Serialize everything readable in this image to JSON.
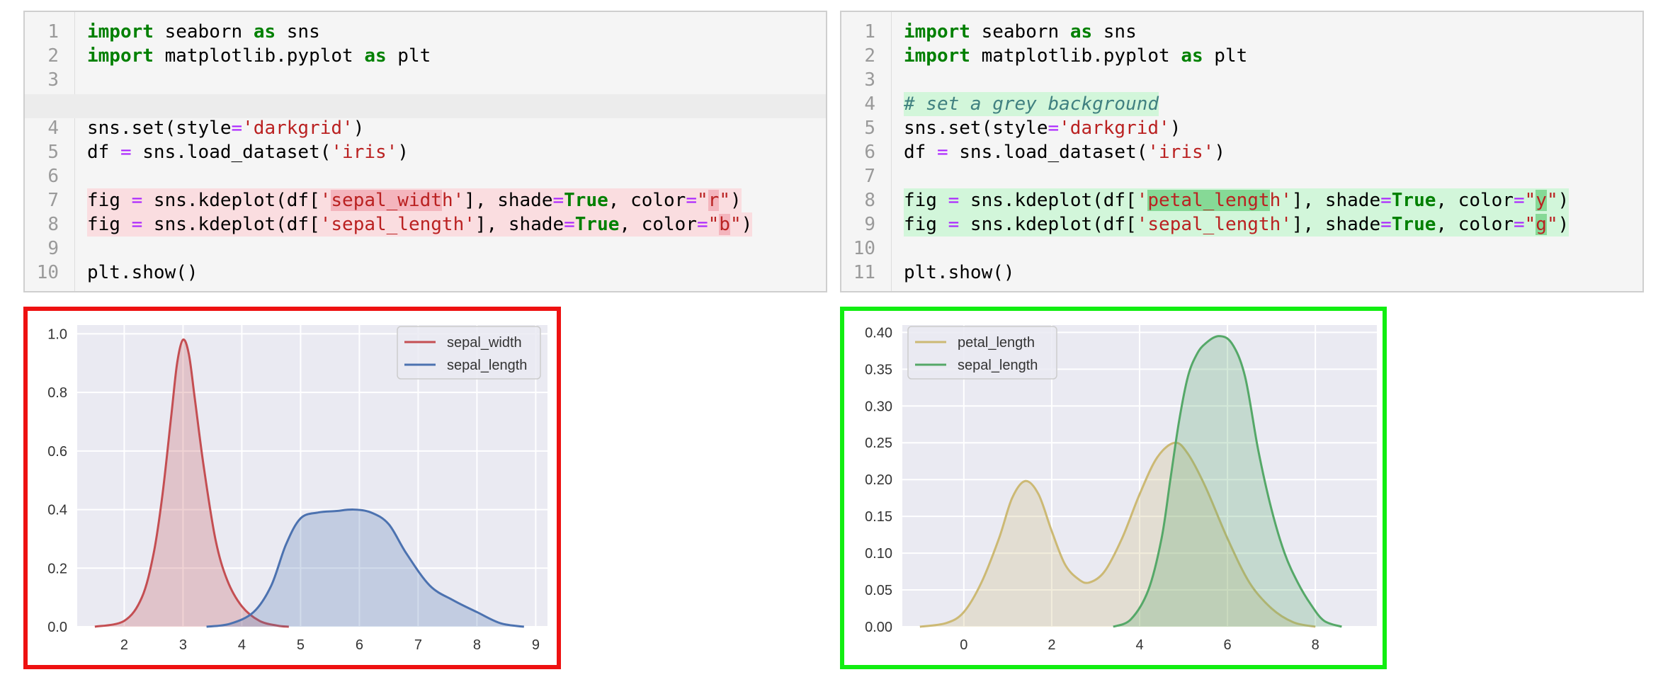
{
  "left_cell": {
    "lines": [
      {
        "num": "1",
        "tokens": [
          {
            "t": "import",
            "c": "kw"
          },
          {
            "t": " seaborn "
          },
          {
            "t": "as",
            "c": "kw"
          },
          {
            "t": " sns"
          }
        ]
      },
      {
        "num": "2",
        "tokens": [
          {
            "t": "import",
            "c": "kw"
          },
          {
            "t": " matplotlib.pyplot "
          },
          {
            "t": "as",
            "c": "kw"
          },
          {
            "t": " plt"
          }
        ]
      },
      {
        "num": "3",
        "tokens": []
      },
      {
        "num": "",
        "tokens": []
      },
      {
        "num": "4",
        "tokens": [
          {
            "t": "sns.set(style"
          },
          {
            "t": "=",
            "c": "op"
          },
          {
            "t": "'darkgrid'",
            "c": "str"
          },
          {
            "t": ")"
          }
        ]
      },
      {
        "num": "5",
        "tokens": [
          {
            "t": "df "
          },
          {
            "t": "=",
            "c": "op"
          },
          {
            "t": " sns.load_dataset("
          },
          {
            "t": "'iris'",
            "c": "str"
          },
          {
            "t": ")"
          }
        ]
      },
      {
        "num": "6",
        "tokens": []
      },
      {
        "num": "7",
        "diff": "dl",
        "tokens": [
          {
            "t": "fig "
          },
          {
            "t": "=",
            "c": "op"
          },
          {
            "t": " sns.kdeplot(df["
          },
          {
            "t": "'",
            "c": "str"
          },
          {
            "t": "sepal_widt",
            "c": "str dh"
          },
          {
            "t": "h'",
            "c": "str"
          },
          {
            "t": "], shade"
          },
          {
            "t": "=",
            "c": "op"
          },
          {
            "t": "True",
            "c": "kw"
          },
          {
            "t": ", color"
          },
          {
            "t": "=",
            "c": "op"
          },
          {
            "t": "\"",
            "c": "str"
          },
          {
            "t": "r",
            "c": "str dh"
          },
          {
            "t": "\"",
            "c": "str"
          },
          {
            "t": ")"
          }
        ]
      },
      {
        "num": "8",
        "diff": "dl",
        "tokens": [
          {
            "t": "fig "
          },
          {
            "t": "=",
            "c": "op"
          },
          {
            "t": " sns.kdeplot(df["
          },
          {
            "t": "'sepal_length'",
            "c": "str"
          },
          {
            "t": "], shade"
          },
          {
            "t": "=",
            "c": "op"
          },
          {
            "t": "True",
            "c": "kw"
          },
          {
            "t": ", color"
          },
          {
            "t": "=",
            "c": "op"
          },
          {
            "t": "\"",
            "c": "str"
          },
          {
            "t": "b",
            "c": "str dh"
          },
          {
            "t": "\"",
            "c": "str"
          },
          {
            "t": ")"
          }
        ]
      },
      {
        "num": "9",
        "tokens": []
      },
      {
        "num": "10",
        "tokens": [
          {
            "t": "plt.show()"
          }
        ]
      }
    ]
  },
  "right_cell": {
    "lines": [
      {
        "num": "1",
        "tokens": [
          {
            "t": "import",
            "c": "kw"
          },
          {
            "t": " seaborn "
          },
          {
            "t": "as",
            "c": "kw"
          },
          {
            "t": " sns"
          }
        ]
      },
      {
        "num": "2",
        "tokens": [
          {
            "t": "import",
            "c": "kw"
          },
          {
            "t": " matplotlib.pyplot "
          },
          {
            "t": "as",
            "c": "kw"
          },
          {
            "t": " plt"
          }
        ]
      },
      {
        "num": "3",
        "tokens": []
      },
      {
        "num": "4",
        "diff": "al",
        "tokens": [
          {
            "t": "# set a grey background",
            "c": "cm"
          }
        ]
      },
      {
        "num": "5",
        "tokens": [
          {
            "t": "sns.set(style"
          },
          {
            "t": "=",
            "c": "op"
          },
          {
            "t": "'darkgrid'",
            "c": "str"
          },
          {
            "t": ")"
          }
        ]
      },
      {
        "num": "6",
        "tokens": [
          {
            "t": "df "
          },
          {
            "t": "=",
            "c": "op"
          },
          {
            "t": " sns.load_dataset("
          },
          {
            "t": "'iris'",
            "c": "str"
          },
          {
            "t": ")"
          }
        ]
      },
      {
        "num": "7",
        "tokens": []
      },
      {
        "num": "8",
        "diff": "al",
        "tokens": [
          {
            "t": "fig "
          },
          {
            "t": "=",
            "c": "op"
          },
          {
            "t": " sns.kdeplot(df["
          },
          {
            "t": "'",
            "c": "str"
          },
          {
            "t": "petal_lengt",
            "c": "str ah"
          },
          {
            "t": "h'",
            "c": "str"
          },
          {
            "t": "], shade"
          },
          {
            "t": "=",
            "c": "op"
          },
          {
            "t": "True",
            "c": "kw"
          },
          {
            "t": ", color"
          },
          {
            "t": "=",
            "c": "op"
          },
          {
            "t": "\"",
            "c": "str"
          },
          {
            "t": "y",
            "c": "str ah"
          },
          {
            "t": "\"",
            "c": "str"
          },
          {
            "t": ")"
          }
        ]
      },
      {
        "num": "9",
        "diff": "al",
        "tokens": [
          {
            "t": "fig "
          },
          {
            "t": "=",
            "c": "op"
          },
          {
            "t": " sns.kdeplot(df["
          },
          {
            "t": "'sepal_length'",
            "c": "str"
          },
          {
            "t": "], shade"
          },
          {
            "t": "=",
            "c": "op"
          },
          {
            "t": "True",
            "c": "kw"
          },
          {
            "t": ", color"
          },
          {
            "t": "=",
            "c": "op"
          },
          {
            "t": "\"",
            "c": "str"
          },
          {
            "t": "g",
            "c": "str ah"
          },
          {
            "t": "\"",
            "c": "str"
          },
          {
            "t": ")"
          }
        ]
      },
      {
        "num": "10",
        "tokens": []
      },
      {
        "num": "11",
        "tokens": [
          {
            "t": "plt.show()"
          }
        ]
      }
    ]
  },
  "chart_data": [
    {
      "type": "area",
      "xlim": [
        1.2,
        9.2
      ],
      "ylim": [
        0,
        1.03
      ],
      "xticks": [
        "2",
        "3",
        "4",
        "5",
        "6",
        "7",
        "8",
        "9"
      ],
      "yticks": [
        "0.0",
        "0.2",
        "0.4",
        "0.6",
        "0.8",
        "1.0"
      ],
      "grid": true,
      "legend_position": "top-right",
      "series": [
        {
          "name": "sepal_width",
          "color": "#c44e52",
          "points": [
            [
              1.5,
              0
            ],
            [
              2.0,
              0.02
            ],
            [
              2.3,
              0.1
            ],
            [
              2.5,
              0.25
            ],
            [
              2.65,
              0.45
            ],
            [
              2.8,
              0.72
            ],
            [
              2.9,
              0.9
            ],
            [
              3.0,
              0.98
            ],
            [
              3.1,
              0.93
            ],
            [
              3.2,
              0.78
            ],
            [
              3.35,
              0.55
            ],
            [
              3.55,
              0.3
            ],
            [
              3.75,
              0.16
            ],
            [
              4.0,
              0.07
            ],
            [
              4.3,
              0.02
            ],
            [
              4.6,
              0.004
            ],
            [
              4.8,
              0
            ]
          ]
        },
        {
          "name": "sepal_length",
          "color": "#4c72b0",
          "points": [
            [
              3.4,
              0
            ],
            [
              3.8,
              0.01
            ],
            [
              4.2,
              0.05
            ],
            [
              4.5,
              0.14
            ],
            [
              4.75,
              0.28
            ],
            [
              5.0,
              0.37
            ],
            [
              5.3,
              0.39
            ],
            [
              5.6,
              0.395
            ],
            [
              5.9,
              0.4
            ],
            [
              6.2,
              0.39
            ],
            [
              6.5,
              0.35
            ],
            [
              6.8,
              0.25
            ],
            [
              7.2,
              0.14
            ],
            [
              7.6,
              0.09
            ],
            [
              8.0,
              0.05
            ],
            [
              8.4,
              0.012
            ],
            [
              8.8,
              0
            ]
          ]
        }
      ]
    },
    {
      "type": "area",
      "xlim": [
        -1.4,
        9.4
      ],
      "ylim": [
        0,
        0.41
      ],
      "xticks": [
        "0",
        "2",
        "4",
        "6",
        "8"
      ],
      "yticks": [
        "0.00",
        "0.05",
        "0.10",
        "0.15",
        "0.20",
        "0.25",
        "0.30",
        "0.35",
        "0.40"
      ],
      "grid": true,
      "legend_position": "top-left",
      "series": [
        {
          "name": "petal_length",
          "color": "#ccb974",
          "points": [
            [
              -1.0,
              0
            ],
            [
              -0.4,
              0.005
            ],
            [
              0,
              0.02
            ],
            [
              0.4,
              0.06
            ],
            [
              0.8,
              0.12
            ],
            [
              1.1,
              0.175
            ],
            [
              1.4,
              0.198
            ],
            [
              1.7,
              0.18
            ],
            [
              2.0,
              0.13
            ],
            [
              2.3,
              0.085
            ],
            [
              2.6,
              0.065
            ],
            [
              2.85,
              0.06
            ],
            [
              3.2,
              0.075
            ],
            [
              3.6,
              0.12
            ],
            [
              4.0,
              0.18
            ],
            [
              4.4,
              0.23
            ],
            [
              4.8,
              0.25
            ],
            [
              5.1,
              0.235
            ],
            [
              5.5,
              0.19
            ],
            [
              6.0,
              0.12
            ],
            [
              6.5,
              0.06
            ],
            [
              7.0,
              0.025
            ],
            [
              7.5,
              0.006
            ],
            [
              8.0,
              0
            ]
          ]
        },
        {
          "name": "sepal_length",
          "color": "#55a868",
          "points": [
            [
              3.4,
              0
            ],
            [
              3.8,
              0.01
            ],
            [
              4.2,
              0.05
            ],
            [
              4.5,
              0.12
            ],
            [
              4.7,
              0.2
            ],
            [
              4.9,
              0.28
            ],
            [
              5.1,
              0.34
            ],
            [
              5.3,
              0.37
            ],
            [
              5.5,
              0.385
            ],
            [
              5.8,
              0.395
            ],
            [
              6.1,
              0.385
            ],
            [
              6.4,
              0.34
            ],
            [
              6.7,
              0.24
            ],
            [
              7.0,
              0.16
            ],
            [
              7.3,
              0.1
            ],
            [
              7.6,
              0.06
            ],
            [
              7.9,
              0.03
            ],
            [
              8.2,
              0.008
            ],
            [
              8.6,
              0
            ]
          ]
        }
      ]
    }
  ]
}
